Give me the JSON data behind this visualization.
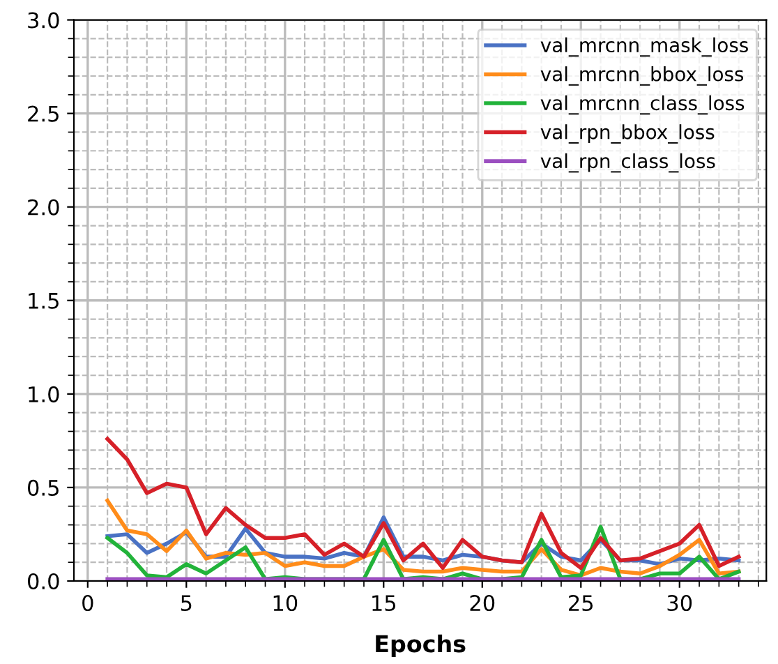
{
  "chart_data": {
    "type": "line",
    "xlabel": "Epochs",
    "x": [
      1,
      2,
      3,
      4,
      5,
      6,
      7,
      8,
      9,
      10,
      11,
      12,
      13,
      14,
      15,
      16,
      17,
      18,
      19,
      20,
      21,
      22,
      23,
      24,
      25,
      26,
      27,
      28,
      29,
      30,
      31,
      32,
      33
    ],
    "series": [
      {
        "name": "val_mrcnn_mask_loss",
        "color": "#4a72c4",
        "values": [
          0.24,
          0.25,
          0.15,
          0.2,
          0.26,
          0.13,
          0.13,
          0.28,
          0.15,
          0.13,
          0.13,
          0.12,
          0.15,
          0.13,
          0.34,
          0.13,
          0.13,
          0.11,
          0.14,
          0.13,
          0.11,
          0.1,
          0.2,
          0.13,
          0.11,
          0.22,
          0.11,
          0.11,
          0.09,
          0.12,
          0.11,
          0.12,
          0.11
        ]
      },
      {
        "name": "val_mrcnn_bbox_loss",
        "color": "#ff8c1a",
        "values": [
          0.43,
          0.27,
          0.25,
          0.16,
          0.27,
          0.12,
          0.15,
          0.14,
          0.15,
          0.08,
          0.1,
          0.08,
          0.08,
          0.13,
          0.17,
          0.06,
          0.05,
          0.05,
          0.07,
          0.06,
          0.05,
          0.05,
          0.17,
          0.06,
          0.03,
          0.07,
          0.05,
          0.04,
          0.08,
          0.14,
          0.22,
          0.04,
          0.05
        ]
      },
      {
        "name": "val_mrcnn_class_loss",
        "color": "#22b33a",
        "values": [
          0.23,
          0.15,
          0.03,
          0.02,
          0.09,
          0.04,
          0.11,
          0.18,
          0.01,
          0.02,
          0.01,
          0.01,
          0.01,
          0.01,
          0.22,
          0.01,
          0.02,
          0.01,
          0.04,
          0.01,
          0.01,
          0.02,
          0.22,
          0.02,
          0.03,
          0.29,
          0.01,
          0.01,
          0.04,
          0.04,
          0.13,
          0.01,
          0.05
        ]
      },
      {
        "name": "val_rpn_bbox_loss",
        "color": "#d62028",
        "values": [
          0.76,
          0.65,
          0.47,
          0.52,
          0.5,
          0.25,
          0.39,
          0.3,
          0.23,
          0.23,
          0.25,
          0.14,
          0.2,
          0.13,
          0.31,
          0.11,
          0.2,
          0.07,
          0.22,
          0.13,
          0.11,
          0.1,
          0.36,
          0.15,
          0.07,
          0.23,
          0.11,
          0.12,
          0.16,
          0.2,
          0.3,
          0.08,
          0.13
        ]
      },
      {
        "name": "val_rpn_class_loss",
        "color": "#9b4fc0",
        "values": [
          0.01,
          0.01,
          0.01,
          0.01,
          0.01,
          0.01,
          0.01,
          0.01,
          0.01,
          0.01,
          0.01,
          0.01,
          0.01,
          0.01,
          0.01,
          0.01,
          0.01,
          0.01,
          0.01,
          0.01,
          0.01,
          0.01,
          0.01,
          0.01,
          0.01,
          0.01,
          0.01,
          0.01,
          0.01,
          0.01,
          0.01,
          0.01,
          0.01
        ]
      }
    ],
    "xlim": [
      -0.7,
      34.4
    ],
    "ylim": [
      0,
      3.0
    ],
    "xticks": [
      0,
      {
        "value": 1,
        "label": null
      },
      {
        "value": 2,
        "label": null
      },
      {
        "value": 3,
        "label": null
      },
      {
        "value": 4,
        "label": null
      },
      5,
      {
        "value": 6,
        "label": null
      },
      {
        "value": 7,
        "label": null
      },
      {
        "value": 8,
        "label": null
      },
      {
        "value": 9,
        "label": null
      },
      10,
      {
        "value": 11,
        "label": null
      },
      {
        "value": 12,
        "label": null
      },
      {
        "value": 13,
        "label": null
      },
      {
        "value": 14,
        "label": null
      },
      15,
      {
        "value": 16,
        "label": null
      },
      {
        "value": 17,
        "label": null
      },
      {
        "value": 18,
        "label": null
      },
      {
        "value": 19,
        "label": null
      },
      20,
      {
        "value": 21,
        "label": null
      },
      {
        "value": 22,
        "label": null
      },
      {
        "value": 23,
        "label": null
      },
      {
        "value": 24,
        "label": null
      },
      25,
      {
        "value": 26,
        "label": null
      },
      {
        "value": 27,
        "label": null
      },
      {
        "value": 28,
        "label": null
      },
      {
        "value": 29,
        "label": null
      },
      30,
      {
        "value": 31,
        "label": null
      },
      {
        "value": 32,
        "label": null
      },
      {
        "value": 33,
        "label": null
      },
      {
        "value": 34,
        "label": null
      }
    ],
    "yticks": [
      {
        "value": 0,
        "label": "0.0"
      },
      {
        "value": 0.1,
        "label": null
      },
      {
        "value": 0.2,
        "label": null
      },
      {
        "value": 0.3,
        "label": null
      },
      {
        "value": 0.4,
        "label": null
      },
      {
        "value": 0.5,
        "label": "0.5"
      },
      {
        "value": 0.6,
        "label": null
      },
      {
        "value": 0.7,
        "label": null
      },
      {
        "value": 0.8,
        "label": null
      },
      {
        "value": 0.9,
        "label": null
      },
      {
        "value": 1.0,
        "label": "1.0"
      },
      {
        "value": 1.1,
        "label": null
      },
      {
        "value": 1.2,
        "label": null
      },
      {
        "value": 1.3,
        "label": null
      },
      {
        "value": 1.4,
        "label": null
      },
      {
        "value": 1.5,
        "label": "1.5"
      },
      {
        "value": 1.6,
        "label": null
      },
      {
        "value": 1.7,
        "label": null
      },
      {
        "value": 1.8,
        "label": null
      },
      {
        "value": 1.9,
        "label": null
      },
      {
        "value": 2.0,
        "label": "2.0"
      },
      {
        "value": 2.1,
        "label": null
      },
      {
        "value": 2.2,
        "label": null
      },
      {
        "value": 2.3,
        "label": null
      },
      {
        "value": 2.4,
        "label": null
      },
      {
        "value": 2.5,
        "label": "2.5"
      },
      {
        "value": 2.6,
        "label": null
      },
      {
        "value": 2.7,
        "label": null
      },
      {
        "value": 2.8,
        "label": null
      },
      {
        "value": 2.9,
        "label": null
      },
      {
        "value": 3.0,
        "label": "3.0"
      }
    ],
    "grid": true,
    "legend": "top right",
    "line_style": "solid",
    "marker": "none"
  }
}
